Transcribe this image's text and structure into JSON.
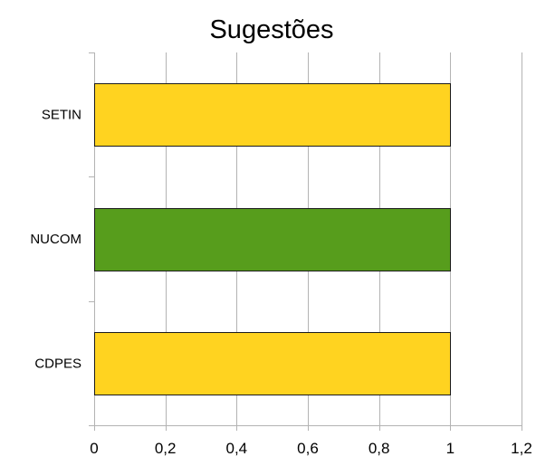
{
  "chart_data": {
    "type": "bar",
    "orientation": "horizontal",
    "title": "Sugestões",
    "xlabel": "",
    "ylabel": "",
    "categories": [
      "SETIN",
      "NUCOM",
      "CDPES"
    ],
    "values": [
      1,
      1,
      1
    ],
    "bar_colors": [
      "#ffd320",
      "#579d1c",
      "#ffd320"
    ],
    "xlim": [
      0,
      1.2
    ],
    "x_ticks": [
      0,
      0.2,
      0.4,
      0.6,
      0.8,
      1,
      1.2
    ],
    "x_tick_labels": [
      "0",
      "0,2",
      "0,4",
      "0,6",
      "0,8",
      "1",
      "1,2"
    ],
    "grid": true,
    "legend": "none"
  }
}
